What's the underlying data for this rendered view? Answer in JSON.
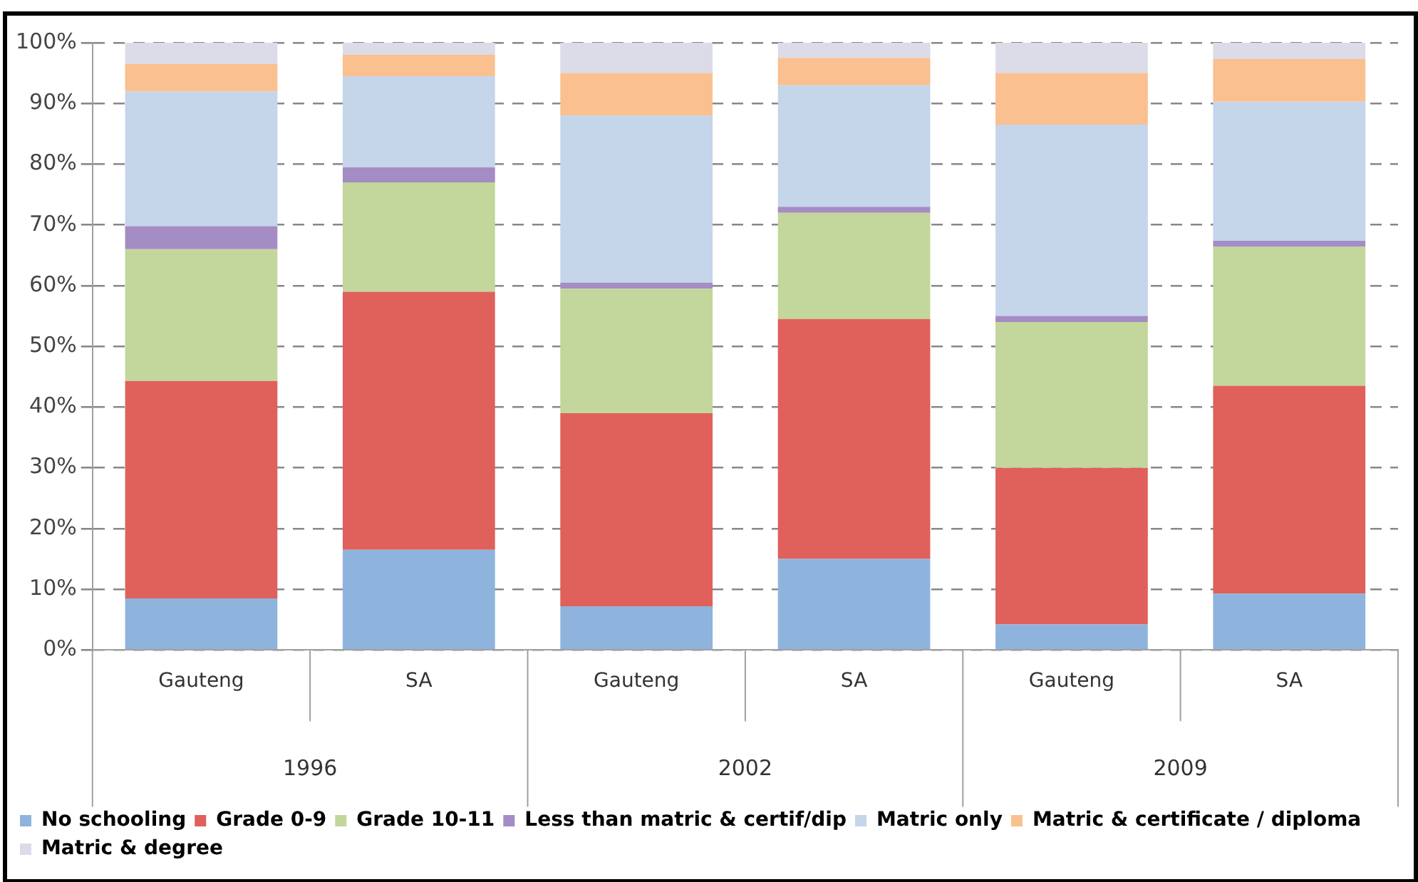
{
  "chart_data": {
    "type": "bar",
    "stacked": true,
    "categories": [
      "Gauteng",
      "SA",
      "Gauteng",
      "SA",
      "Gauteng",
      "SA"
    ],
    "series": [
      {
        "name": "No schooling",
        "color": "#8eb4de",
        "values": [
          8.5,
          16.5,
          7.2,
          15,
          4.2,
          9.3
        ]
      },
      {
        "name": "Grade 0-9",
        "color": "#e0605c",
        "values": [
          35.8,
          42.5,
          31.8,
          39.5,
          25.8,
          34.2
        ]
      },
      {
        "name": "Grade 10-11",
        "color": "#c3d69b",
        "values": [
          21.7,
          18,
          20.5,
          17.5,
          24,
          22.9
        ]
      },
      {
        "name": "Less than matric & certif/dip",
        "color": "#a48cc4",
        "values": [
          3.8,
          2.5,
          1,
          1,
          1,
          1
        ]
      },
      {
        "name": "Matric only",
        "color": "#c5d5ea",
        "values": [
          22.2,
          15,
          27.5,
          20,
          31.5,
          22.9
        ]
      },
      {
        "name": "Matric & certificate / diploma",
        "color": "#fac090",
        "values": [
          4.5,
          3.5,
          7,
          4.5,
          8.5,
          7
        ]
      },
      {
        "name": "Matric & degree",
        "color": "#dcdbe8",
        "values": [
          3.5,
          2,
          5,
          2.5,
          5,
          2.7
        ]
      }
    ],
    "ylim": [
      0,
      100
    ],
    "yticks": [
      {
        "value": 0,
        "label": "0%"
      },
      {
        "value": 10,
        "label": "10%"
      },
      {
        "value": 20,
        "label": "20%"
      },
      {
        "value": 30,
        "label": "30%"
      },
      {
        "value": 40,
        "label": "40%"
      },
      {
        "value": 50,
        "label": "50%"
      },
      {
        "value": 60,
        "label": "60%"
      },
      {
        "value": 70,
        "label": "70%"
      },
      {
        "value": 80,
        "label": "80%"
      },
      {
        "value": 90,
        "label": "90%"
      },
      {
        "value": 100,
        "label": "100%"
      }
    ],
    "grid": "y",
    "legend": "bottom",
    "annotations": [
      "1996",
      "2002",
      "2009"
    ]
  }
}
